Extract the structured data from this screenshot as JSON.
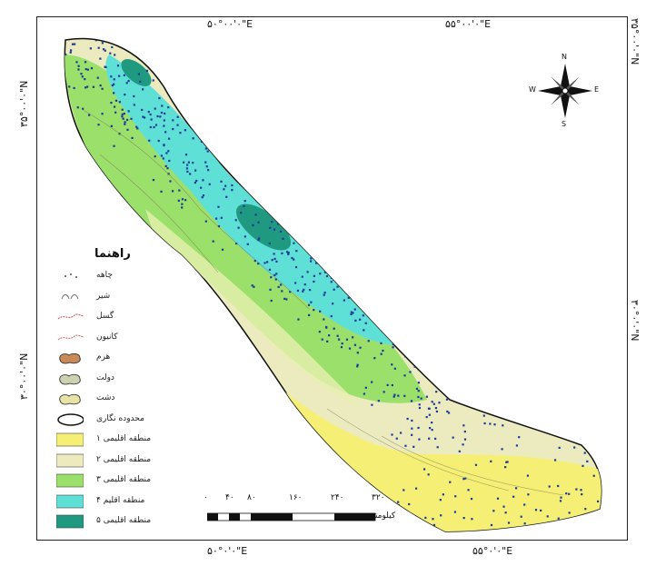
{
  "coordinates": {
    "top_left": "۵۰°۰۰'۰\"E",
    "top_right": "۵۵°۰۰'۰\"E",
    "bottom_left": "۵۰°۰'۰\"E",
    "bottom_right": "۵۵°۰'۰\"E",
    "left_upper": "۳۵°۰۰'۰\"N",
    "left_lower": "۳۰°۰۰'۰\"N",
    "right_upper": "۳۵°۰۰'۰\"N",
    "right_lower": "۳۰°۰'۰\"N"
  },
  "north_arrow": {
    "n": "N",
    "e": "E",
    "w": "W",
    "s": "S"
  },
  "legend": {
    "title": "راهنما",
    "items": [
      {
        "label": "چاهه",
        "type": "dots",
        "color": "#5a4a3a"
      },
      {
        "label": "شیر",
        "type": "symbol",
        "color": "#6a6a6a"
      },
      {
        "label": "گسل",
        "type": "line",
        "color": "#c05050"
      },
      {
        "label": "کانیون",
        "type": "line",
        "color": "#c06060"
      },
      {
        "label": "هرم",
        "type": "patch",
        "color": "#c98a5a"
      },
      {
        "label": "دولت",
        "type": "patch",
        "color": "#cdd3b0"
      },
      {
        "label": "دشت",
        "type": "patch",
        "color": "#e6e3a5"
      },
      {
        "label": "محدوده نگاری",
        "type": "ellipse",
        "color": "#ffffff"
      },
      {
        "label": "منطقه اقلیمی ۱",
        "type": "box",
        "color": "#f5f075"
      },
      {
        "label": "منطقه اقلیمی ۲",
        "type": "box",
        "color": "#ecebc0"
      },
      {
        "label": "منطقه اقلیمی ۳",
        "type": "box",
        "color": "#9be06a"
      },
      {
        "label": "منطقه اقلیم ۴",
        "type": "box",
        "color": "#5fe0d6"
      },
      {
        "label": "منطقه اقلیمی ۵",
        "type": "box",
        "color": "#1f9a80"
      }
    ]
  },
  "scalebar": {
    "ticks": [
      "۰",
      "۴۰",
      "۸۰",
      "۱۶۰",
      "۲۴۰",
      "۳۲۰"
    ],
    "unit": "کیلومتر"
  },
  "zone_colors": {
    "zone1": "#f5f075",
    "zone2": "#ecebc0",
    "zone3": "#9be06a",
    "zone4": "#5fe0d6",
    "zone5": "#1f9a80",
    "points": "#1a3a9a"
  }
}
